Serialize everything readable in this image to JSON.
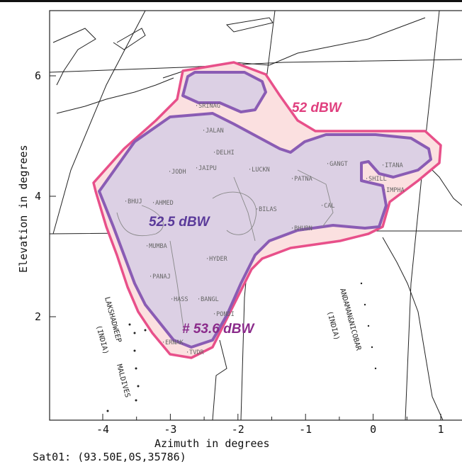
{
  "chart_data": {
    "type": "contour-map",
    "xlabel": "Azimuth in degrees",
    "ylabel": "Elevation in degrees",
    "xlim": [
      -4.79,
      1.32
    ],
    "ylim": [
      0.28,
      7.08
    ],
    "x_ticks": [
      -4,
      -3,
      -2,
      -1,
      0,
      1
    ],
    "y_ticks": [
      2,
      4,
      6
    ],
    "grid": false,
    "caption": "Sat01: (93.50E,0S,35786)",
    "contours": [
      {
        "label": "52 dBW",
        "color": "#e8508a",
        "fill": "#fbe0e0"
      },
      {
        "label": "52.5 dBW",
        "color": "#8a5cb4",
        "fill": "#dcd0e4"
      },
      {
        "label": "# 53.6 dBW",
        "color": "#8a2a8a"
      }
    ],
    "cities": [
      "SRINAG",
      "JALAN",
      "DELHI",
      "JAIPU",
      "JODH",
      "LUCKN",
      "PATNA",
      "GANGT",
      "ITANA",
      "SHILL",
      "IMPHA",
      "BHUJ",
      "AHMED",
      "BILAS",
      "CAL",
      "BHUBN",
      "MUMBA",
      "HYDER",
      "PANAJ",
      "HASS",
      "BANGL",
      "PONDI",
      "ERNAK",
      "TVDR"
    ],
    "regions": [
      "LAKSHADWEEP",
      "(INDIA)",
      "MALDIVES",
      "ANDAMAN&NICOBAR",
      "(INDIA)"
    ]
  }
}
